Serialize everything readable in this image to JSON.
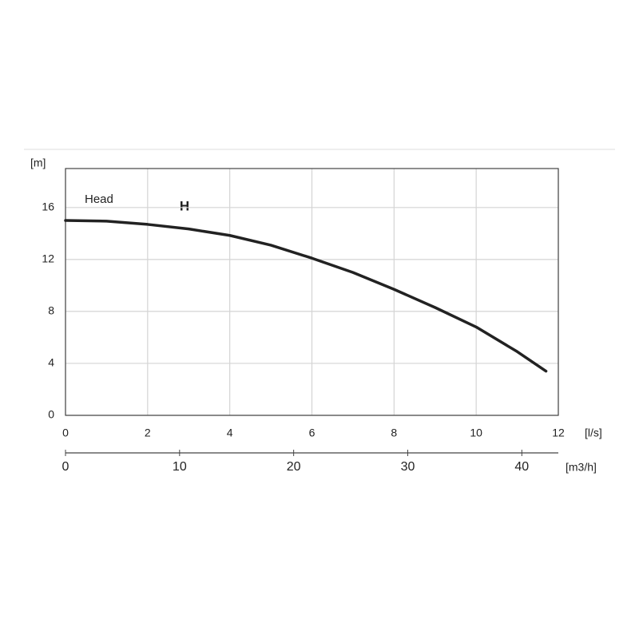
{
  "chart_data": {
    "type": "line",
    "y_label": "[m]",
    "x_label": "[l/s]",
    "x2_label": "[m3/h]",
    "annotation": "H",
    "series": [
      {
        "name": "Head",
        "color": "#222222",
        "x": [
          0,
          1,
          2,
          3,
          4,
          5,
          6,
          7,
          8,
          9,
          10,
          11,
          11.7
        ],
        "values": [
          15.0,
          14.95,
          14.7,
          14.35,
          13.85,
          13.1,
          12.1,
          11.0,
          9.7,
          8.3,
          6.8,
          4.9,
          3.4
        ]
      }
    ],
    "xlim": [
      0,
      12
    ],
    "xticks": [
      0,
      2,
      4,
      6,
      8,
      10,
      12
    ],
    "ylim": [
      0,
      19
    ],
    "yticks": [
      0,
      4,
      8,
      12,
      16
    ],
    "x2lim": [
      0,
      43.2
    ],
    "x2ticks": [
      0,
      10,
      20,
      30,
      40
    ],
    "grid": true
  }
}
